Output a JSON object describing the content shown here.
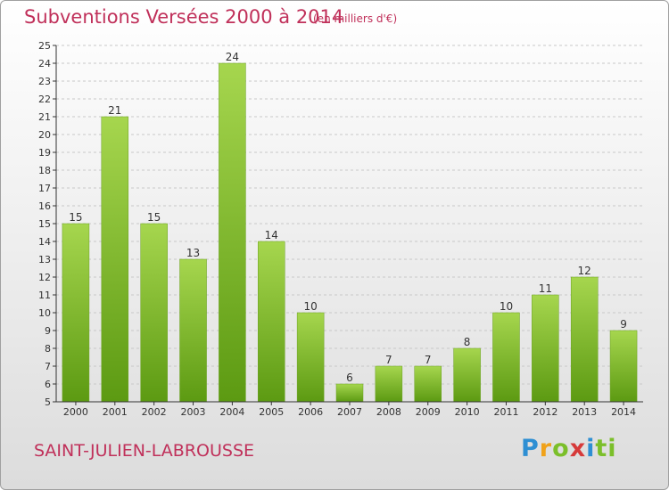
{
  "header": {
    "title": "Subventions Versées 2000 à 2014",
    "subtitle": "(en milliers d'€)"
  },
  "footer": {
    "place": "SAINT-JULIEN-LABROUSSE",
    "logo": [
      "P",
      "r",
      "o",
      "x",
      "i",
      "ti"
    ]
  },
  "colors": {
    "title": "#c0305a",
    "bar_top": "#a6d64e",
    "bar_bottom": "#5c9a12",
    "axis": "#333333"
  },
  "chart_data": {
    "type": "bar",
    "categories": [
      "2000",
      "2001",
      "2002",
      "2003",
      "2004",
      "2005",
      "2006",
      "2007",
      "2008",
      "2009",
      "2010",
      "2011",
      "2012",
      "2013",
      "2014"
    ],
    "values": [
      15,
      21,
      15,
      13,
      24,
      14,
      10,
      6,
      7,
      7,
      8,
      10,
      11,
      12,
      9
    ],
    "ylim": [
      5,
      25
    ],
    "yticks": [
      5,
      6,
      7,
      8,
      9,
      10,
      11,
      12,
      13,
      14,
      15,
      16,
      17,
      18,
      19,
      20,
      21,
      22,
      23,
      24,
      25
    ],
    "grid": true
  }
}
